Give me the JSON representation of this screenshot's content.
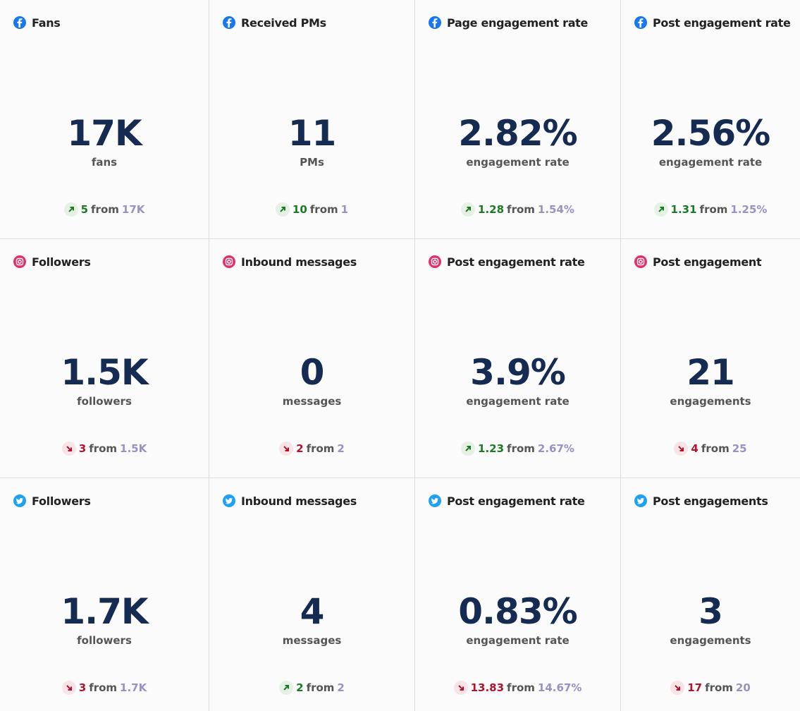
{
  "cards": [
    {
      "icon": "facebook",
      "title": "Fans",
      "value": "17K",
      "unit": "fans",
      "trend": "up",
      "change": "5",
      "connector": "from",
      "previous": "17K"
    },
    {
      "icon": "facebook",
      "title": "Received PMs",
      "value": "11",
      "unit": "PMs",
      "trend": "up",
      "change": "10",
      "connector": "from",
      "previous": "1"
    },
    {
      "icon": "facebook",
      "title": "Page engagement rate",
      "value": "2.82%",
      "unit": "engagement rate",
      "trend": "up",
      "change": "1.28",
      "connector": "from",
      "previous": "1.54%"
    },
    {
      "icon": "facebook",
      "title": "Post engagement rate",
      "value": "2.56%",
      "unit": "engagement rate",
      "trend": "up",
      "change": "1.31",
      "connector": "from",
      "previous": "1.25%"
    },
    {
      "icon": "instagram",
      "title": "Followers",
      "value": "1.5K",
      "unit": "followers",
      "trend": "down",
      "change": "3",
      "connector": "from",
      "previous": "1.5K"
    },
    {
      "icon": "instagram",
      "title": "Inbound messages",
      "value": "0",
      "unit": "messages",
      "trend": "down",
      "change": "2",
      "connector": "from",
      "previous": "2"
    },
    {
      "icon": "instagram",
      "title": "Post engagement rate",
      "value": "3.9%",
      "unit": "engagement rate",
      "trend": "up",
      "change": "1.23",
      "connector": "from",
      "previous": "2.67%"
    },
    {
      "icon": "instagram",
      "title": "Post engagement",
      "value": "21",
      "unit": "engagements",
      "trend": "down",
      "change": "4",
      "connector": "from",
      "previous": "25"
    },
    {
      "icon": "twitter",
      "title": "Followers",
      "value": "1.7K",
      "unit": "followers",
      "trend": "down",
      "change": "3",
      "connector": "from",
      "previous": "1.7K"
    },
    {
      "icon": "twitter",
      "title": "Inbound messages",
      "value": "4",
      "unit": "messages",
      "trend": "up",
      "change": "2",
      "connector": "from",
      "previous": "2"
    },
    {
      "icon": "twitter",
      "title": "Post engagement rate",
      "value": "0.83%",
      "unit": "engagement rate",
      "trend": "down",
      "change": "13.83",
      "connector": "from",
      "previous": "14.67%"
    },
    {
      "icon": "twitter",
      "title": "Post engagements",
      "value": "3",
      "unit": "engagements",
      "trend": "down",
      "change": "17",
      "connector": "from",
      "previous": "20"
    }
  ]
}
